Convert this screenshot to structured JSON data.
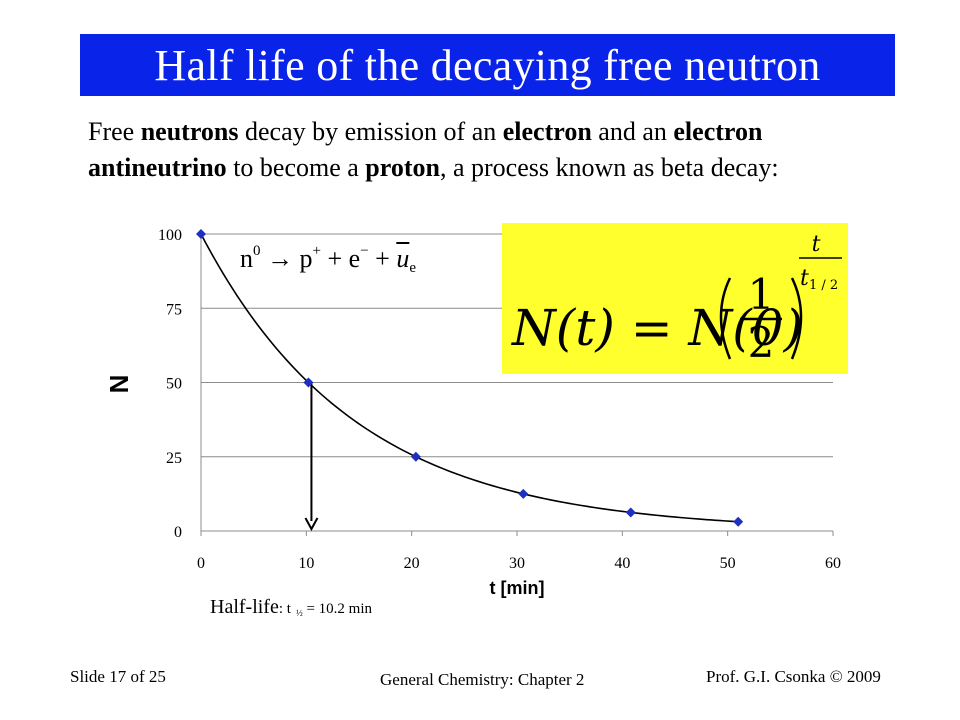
{
  "slide": {
    "title": "Half life of the decaying free neutron",
    "intro": {
      "t1": "Free ",
      "b1": "neutrons",
      "t2": " decay by emission of an ",
      "b2": "electron",
      "t3": " and an ",
      "b3": "electron antineutrino",
      "t4": " to become a ",
      "b4": "proton",
      "t5": ", a process known as beta decay:"
    },
    "reaction": {
      "n": "n",
      "n_sup": "0",
      "arrow": "→",
      "p": "p",
      "p_sup": "+",
      "plus1": "+",
      "e": "e",
      "e_sup": "−",
      "plus2": "+",
      "nu": "u",
      "nu_sub": "e"
    },
    "formula": {
      "lhs": "N(t) = N(0)",
      "numerator": "1",
      "denominator": "2",
      "exp_num": "t",
      "exp_den_t": "t",
      "exp_den_sub": "1 / 2"
    },
    "half_life": {
      "label": "Half-life",
      "sep": ": t",
      "sub": "½",
      "value": " = 10.2 min"
    },
    "footer": {
      "left": "Slide 17 of 25",
      "middle": "General Chemistry: Chapter 2",
      "right": "Prof. G.I. Csonka © 2009"
    }
  },
  "colors": {
    "title_bg": "#0a23e8",
    "formula_bg": "#ffff2e",
    "marker": "#1f2fbf",
    "curve": "#000000",
    "grid": "#8c8c8c"
  },
  "chart_data": {
    "type": "scatter",
    "series": [
      {
        "x": [
          0,
          10.2,
          20.4,
          30.6,
          40.8,
          51.0
        ],
        "y": [
          100,
          50,
          25,
          12.5,
          6.25,
          3.125
        ]
      }
    ],
    "curve": "exponential decay N(t) = 100 · (1/2)^(t/10.2)",
    "xlabel": "t [min]",
    "ylabel": "N",
    "xlim": [
      0,
      60
    ],
    "ylim": [
      0,
      100
    ],
    "xticks": [
      "0",
      "10",
      "20",
      "30",
      "40",
      "50",
      "60"
    ],
    "yticks": [
      "0",
      "25",
      "50",
      "75",
      "100"
    ],
    "grid": "horizontal",
    "annotation": {
      "type": "arrow",
      "x": 10.2,
      "from_y": 50,
      "to_y": 0
    }
  }
}
